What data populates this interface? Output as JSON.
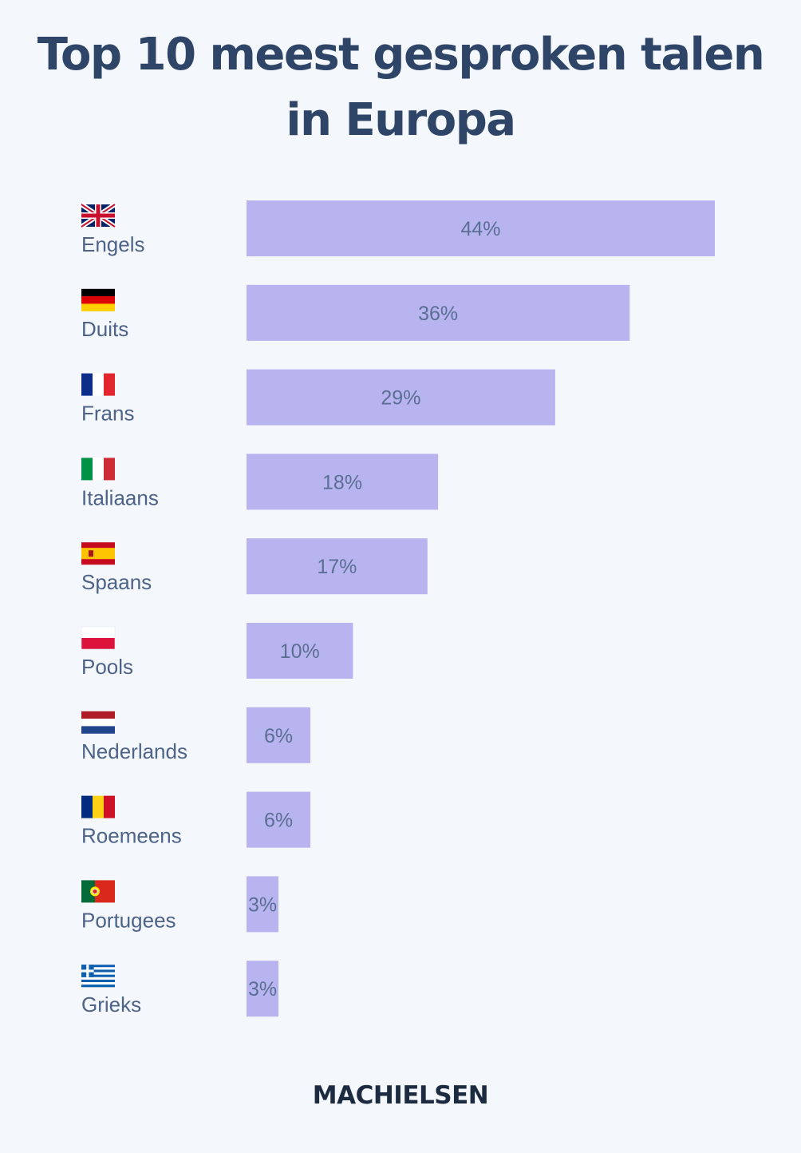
{
  "chart_data": {
    "type": "bar",
    "orientation": "horizontal",
    "title": "Top 10 meest gesproken talen in Europa",
    "categories": [
      "Engels",
      "Duits",
      "Frans",
      "Italiaans",
      "Spaans",
      "Pools",
      "Nederlands",
      "Roemeens",
      "Portugees",
      "Grieks"
    ],
    "values": [
      44,
      36,
      29,
      18,
      17,
      10,
      6,
      6,
      3,
      3
    ],
    "value_labels": [
      "44%",
      "36%",
      "29%",
      "18%",
      "17%",
      "10%",
      "6%",
      "6%",
      "3%",
      "3%"
    ],
    "flags": [
      "uk-flag",
      "germany-flag",
      "france-flag",
      "italy-flag",
      "spain-flag",
      "poland-flag",
      "netherlands-flag",
      "romania-flag",
      "portugal-flag",
      "greece-flag"
    ],
    "xlim": [
      0,
      44
    ],
    "grid": false,
    "bar_color": "#b8b4f0"
  },
  "brand": "MACHIELSEN",
  "colors": {
    "title": "#2e4568",
    "label": "#4d6388",
    "background": "#f4f7fc"
  }
}
